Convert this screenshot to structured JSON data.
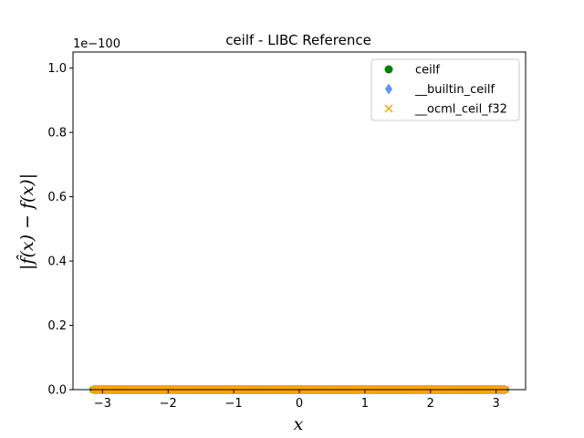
{
  "chart_data": {
    "type": "scatter",
    "title": "ceilf - LIBC Reference",
    "xlabel": "x",
    "ylabel": "|f̂(x) − f(x)|",
    "y_offset_label": "1e−100",
    "xlim": [
      -3.45,
      3.45
    ],
    "ylim": [
      0,
      1.05
    ],
    "x_ticks": [
      -3,
      -2,
      -1,
      0,
      1,
      2,
      3
    ],
    "x_tick_labels": [
      "−3",
      "−2",
      "−1",
      "0",
      "1",
      "2",
      "3"
    ],
    "y_ticks": [
      0.0,
      0.2,
      0.4,
      0.6,
      0.8,
      1.0
    ],
    "y_tick_labels": [
      "0.0",
      "0.2",
      "0.4",
      "0.6",
      "0.8",
      "1.0"
    ],
    "x_range": [
      -3.14159,
      3.14159
    ],
    "num_points": 600,
    "grid": false,
    "legend_position": "top-right",
    "series": [
      {
        "name": "ceilf",
        "marker": "circle",
        "color": "#008000",
        "y_value": 0
      },
      {
        "name": "__builtin_ceilf",
        "marker": "diamond",
        "color": "#6495ED",
        "y_value": 0
      },
      {
        "name": "__ocml_ceil_f32",
        "marker": "x",
        "color": "#FFA500",
        "y_value": 0
      }
    ]
  }
}
